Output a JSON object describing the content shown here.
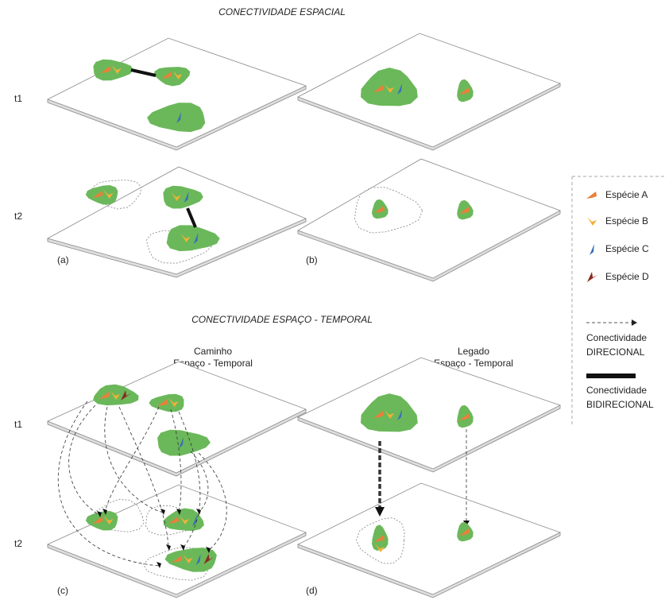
{
  "spatial_title": "CONECTIVIDADE ESPACIAL",
  "spatiotemporal_title": "CONECTIVIDADE ESPAÇO - TEMPORAL",
  "rows": {
    "top": [
      "t1",
      "t2"
    ],
    "bottom": [
      "t1",
      "t2"
    ]
  },
  "panels": [
    "(a)",
    "(b)",
    "(c)",
    "(d)"
  ],
  "subtitles": {
    "c": [
      "Caminho",
      "Espaço - Temporal"
    ],
    "d": [
      "Legado",
      "Espaço - Temporal"
    ]
  },
  "legend": {
    "species": [
      "Espécie A",
      "Espécie B",
      "Espécie C",
      "Espécie D"
    ],
    "directional": [
      "Conectividade",
      "DIRECIONAL"
    ],
    "bidirectional": [
      "Conectividade",
      "BIDIRECIONAL"
    ]
  }
}
